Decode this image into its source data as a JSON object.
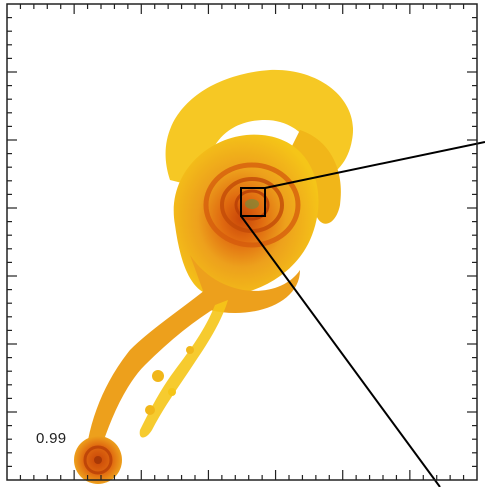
{
  "panel": {
    "time_label": "0.99"
  },
  "colors": {
    "frame": "#222222",
    "outer_gas": "#f5c518",
    "mid_gas": "#eda01c",
    "inner_gas": "#e06a10",
    "core_gas": "#c84508",
    "zoom_box": "#000000"
  },
  "elements": {
    "main_galaxy": "spiral-galaxy",
    "satellite_galaxy": "satellite-spiral",
    "tidal_tail": "tidal-stream",
    "zoom_indicator": "zoom-box-with-connector-lines"
  }
}
